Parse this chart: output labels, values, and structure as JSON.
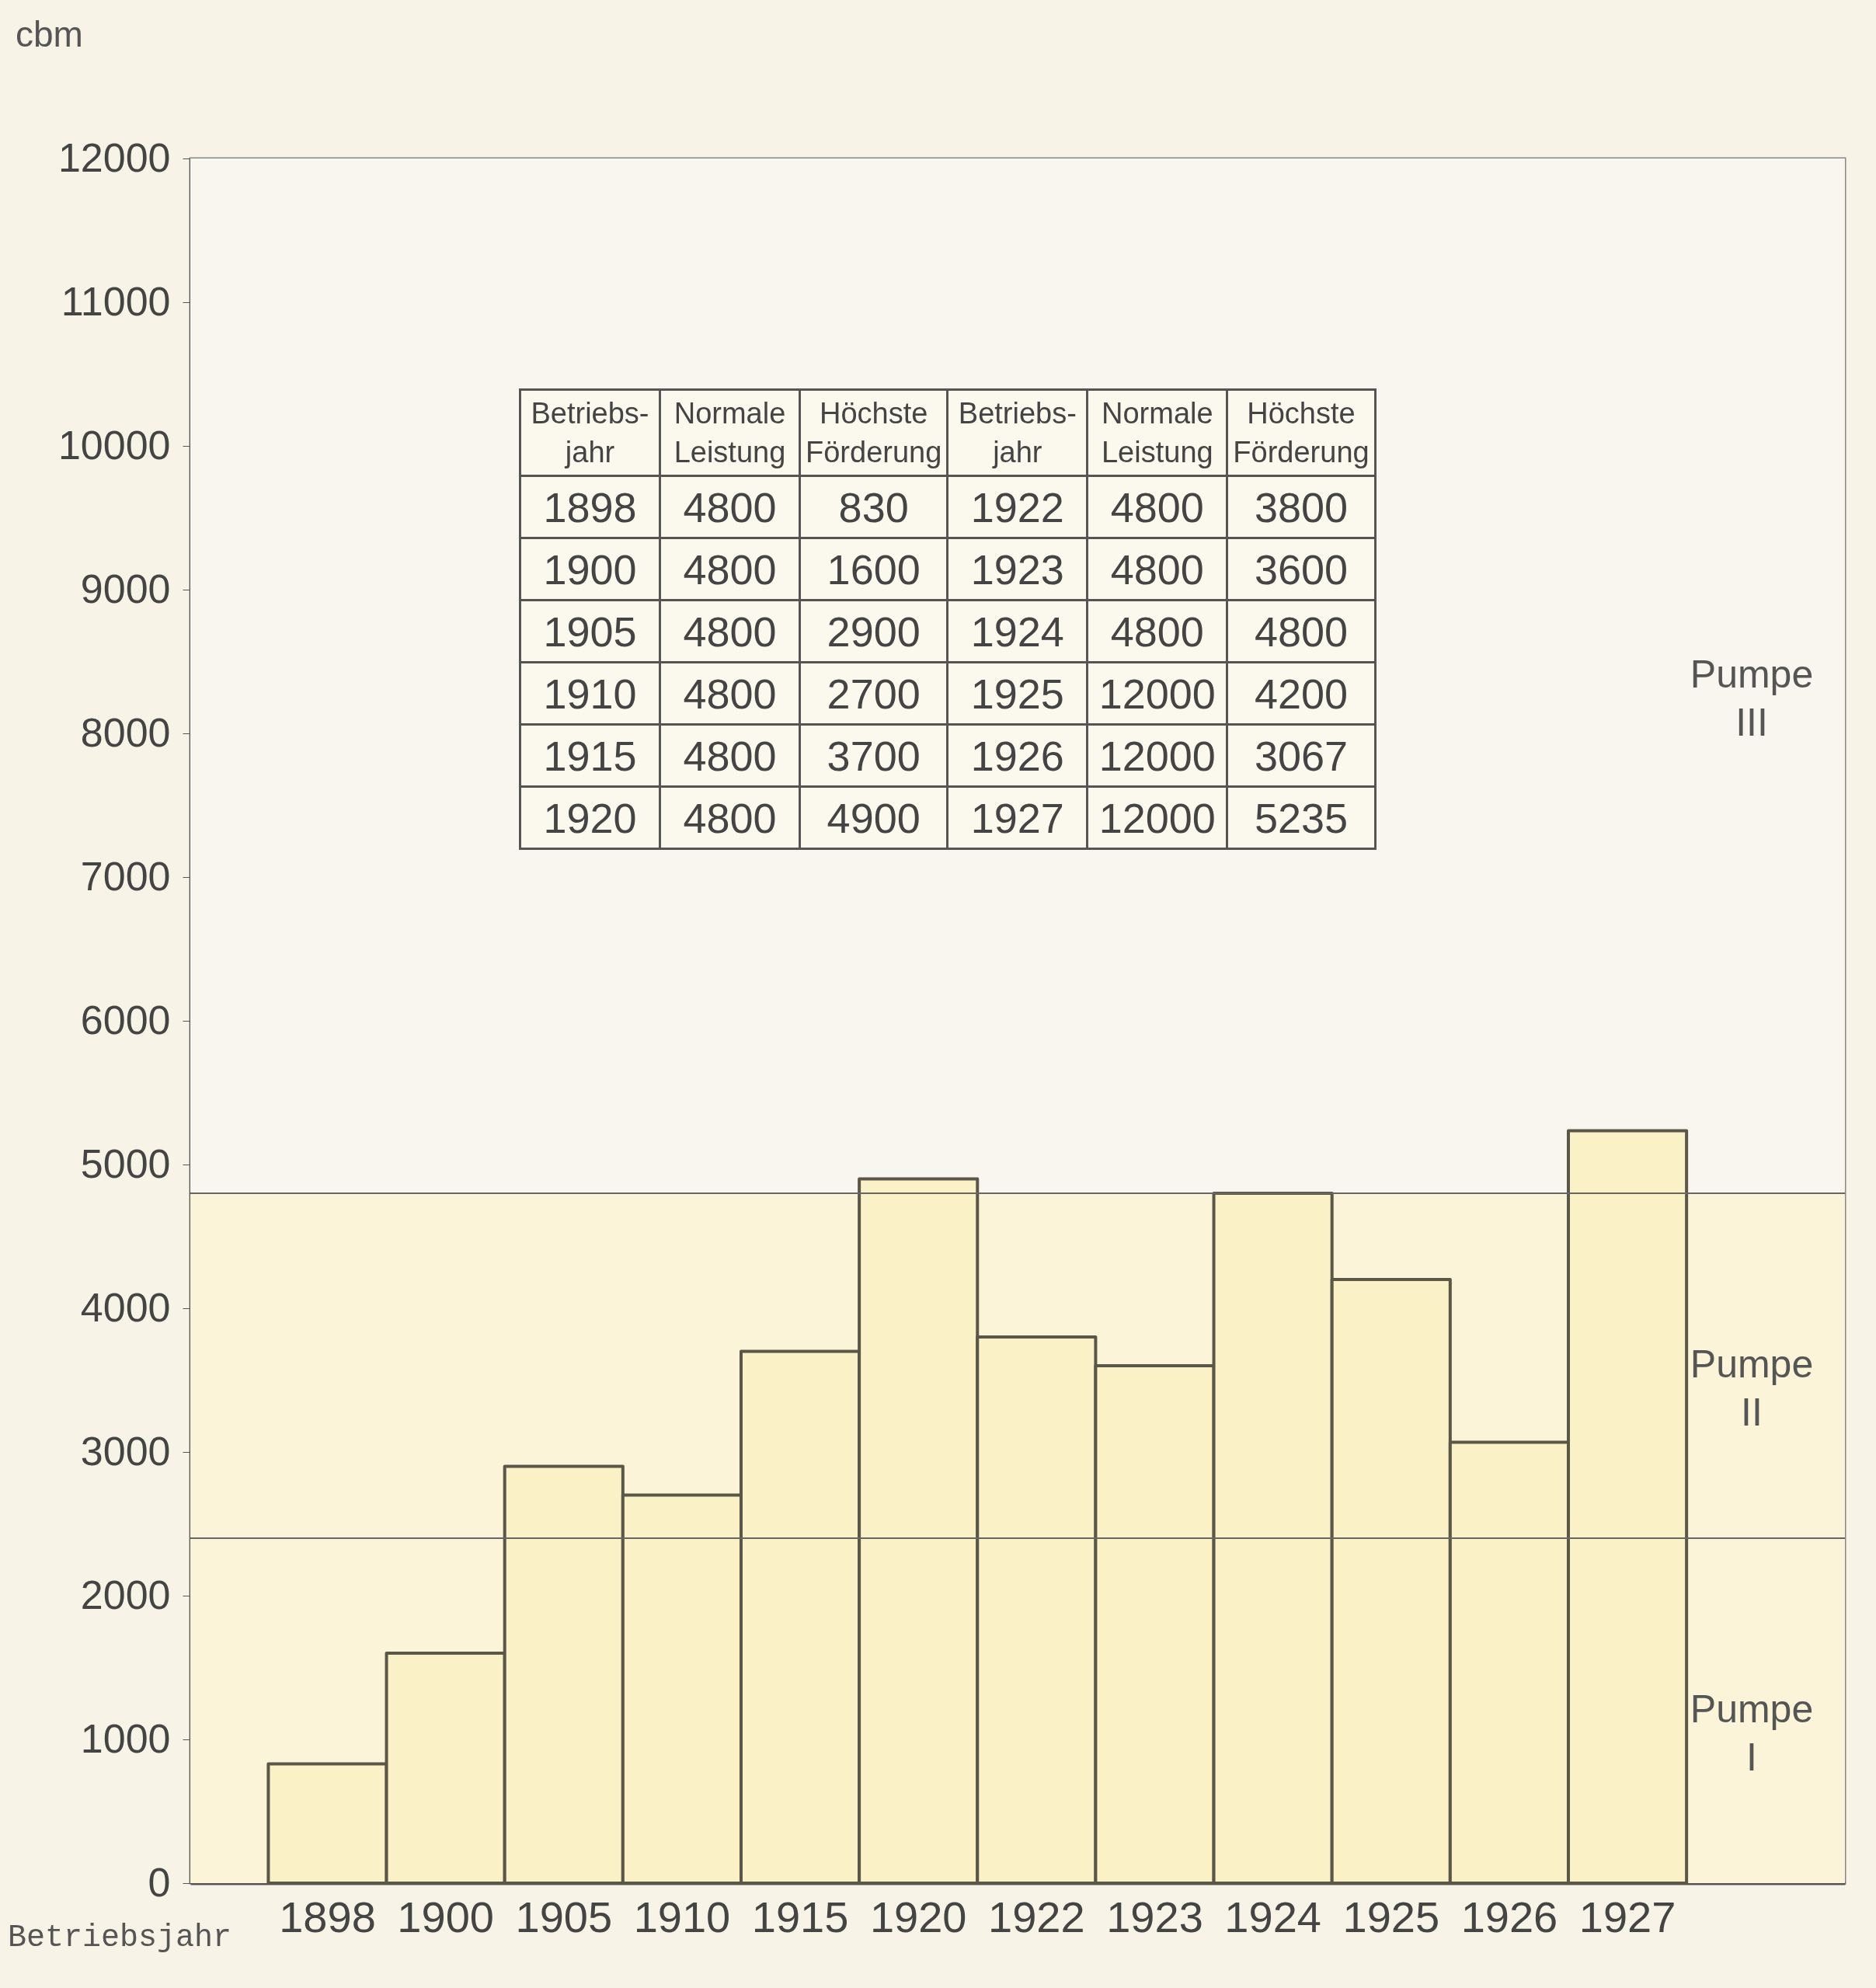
{
  "chart_data": {
    "type": "bar",
    "ylabel": "cbm",
    "xlabel": "Betriebsjahr",
    "categories": [
      "1898",
      "1900",
      "1905",
      "1910",
      "1915",
      "1920",
      "1922",
      "1923",
      "1924",
      "1925",
      "1926",
      "1927"
    ],
    "values": [
      830,
      1600,
      2900,
      2700,
      3700,
      4900,
      3800,
      3600,
      4800,
      4200,
      3067,
      5235
    ],
    "color": "#fbf1c6",
    "ylim": [
      0,
      12000
    ],
    "yticks": [
      0,
      1000,
      2000,
      3000,
      4000,
      5000,
      6000,
      7000,
      8000,
      9000,
      10000,
      11000,
      12000
    ],
    "grid": false,
    "ref_lines": [
      {
        "axis": "y",
        "value": 2400
      },
      {
        "axis": "y",
        "value": 4800
      }
    ],
    "bands": [
      {
        "axis": "y",
        "from": 0,
        "to": 2400,
        "label": "Pumpe I",
        "color": "#fbf4d8"
      },
      {
        "axis": "y",
        "from": 2400,
        "to": 4800,
        "label": "Pumpe II",
        "color": "#fbf4d8"
      },
      {
        "axis": "y",
        "from": 4800,
        "to": 12000,
        "label": "Pumpe III",
        "color": "#f8f6ee"
      }
    ],
    "annotations": [
      "Betriebs-jahr",
      "Normale Leistung",
      "Höchste Förderung",
      "Betriebs-jahr",
      "Normale Leistung",
      "Höchste Förderung",
      "1898",
      "4800",
      "830",
      "1922",
      "4800",
      "3800",
      "1900",
      "4800",
      "1600",
      "1923",
      "4800",
      "3600",
      "1905",
      "4800",
      "2900",
      "1924",
      "4800",
      "4800",
      "1910",
      "4800",
      "2700",
      "1925",
      "12000",
      "4200",
      "1915",
      "4800",
      "3700",
      "1926",
      "12000",
      "3067",
      "1920",
      "4800",
      "4900",
      "1927",
      "12000",
      "5235"
    ]
  }
}
